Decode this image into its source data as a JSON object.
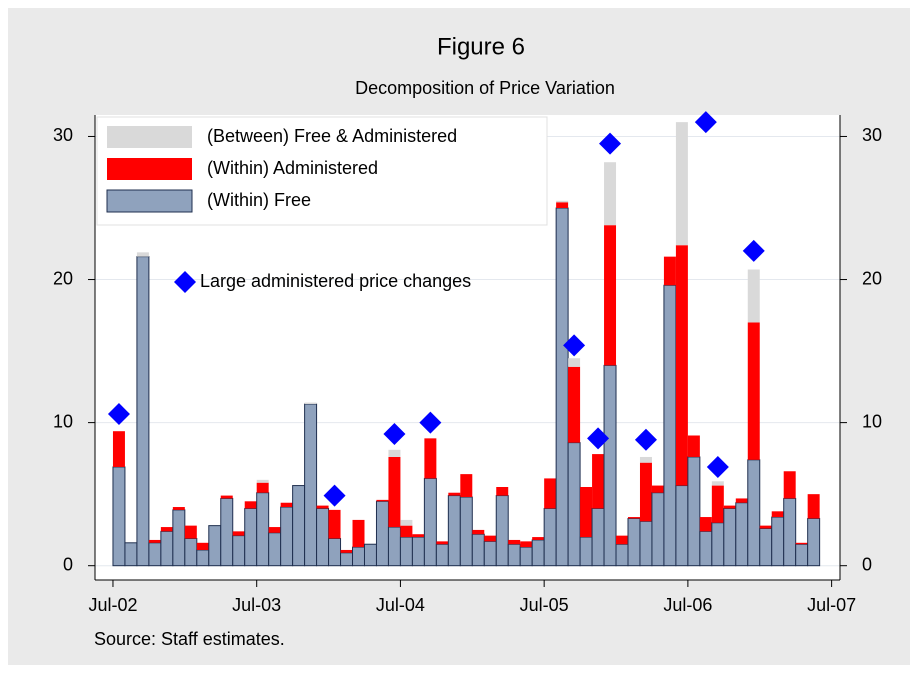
{
  "chart_data": {
    "type": "bar",
    "stacked": true,
    "title": "Figure 6",
    "subtitle": "Decomposition of Price Variation",
    "note": "Source: Staff estimates.",
    "x": [
      0,
      1,
      2,
      3,
      4,
      5,
      6,
      7,
      8,
      9,
      10,
      11,
      12,
      13,
      14,
      15,
      16,
      17,
      18,
      19,
      20,
      21,
      22,
      23,
      24,
      25,
      26,
      27,
      28,
      29,
      30,
      31,
      32,
      33,
      34,
      35,
      36,
      37,
      38,
      39,
      40,
      41,
      42,
      43,
      44,
      45,
      46,
      47,
      48,
      49,
      50,
      51,
      52,
      53,
      54,
      55,
      56,
      57,
      58
    ],
    "series": [
      {
        "name": "(Within) Free",
        "color": "#8fa2bd",
        "values": [
          6.9,
          1.6,
          21.6,
          1.6,
          2.4,
          3.9,
          1.9,
          1.1,
          2.8,
          4.7,
          2.1,
          4.0,
          5.1,
          2.3,
          4.1,
          5.6,
          11.3,
          4.0,
          1.9,
          0.9,
          1.3,
          1.5,
          4.5,
          2.7,
          2.0,
          2.0,
          6.1,
          1.5,
          4.9,
          4.8,
          2.2,
          1.7,
          4.9,
          1.5,
          1.3,
          1.8,
          4.0,
          25.0,
          8.6,
          2.0,
          4.0,
          14.0,
          1.5,
          3.3,
          3.1,
          5.1,
          19.6,
          5.6,
          7.6,
          2.4,
          3.0,
          4.0,
          4.4,
          7.4,
          2.6,
          3.4,
          4.7,
          1.5,
          3.3
        ]
      },
      {
        "name": "(Within) Administered",
        "color": "#ff0000",
        "values": [
          2.5,
          0,
          0,
          0.2,
          0.3,
          0.2,
          0.9,
          0.5,
          0,
          0.2,
          0.3,
          0.5,
          0.7,
          0.4,
          0.3,
          0,
          0,
          0.2,
          2.0,
          0.2,
          1.9,
          0,
          0.1,
          4.9,
          0.8,
          0.2,
          2.8,
          0.2,
          0.2,
          1.6,
          0.3,
          0.4,
          0.6,
          0.3,
          0.4,
          0.2,
          2.1,
          0.4,
          5.3,
          3.5,
          3.8,
          9.8,
          0.6,
          0.1,
          4.1,
          0.5,
          2.0,
          16.8,
          1.5,
          1.0,
          2.6,
          0.2,
          0.3,
          9.6,
          0.2,
          0.4,
          1.9,
          0.1,
          1.7
        ]
      },
      {
        "name": "(Between) Free & Administered",
        "color": "#d9d9d9",
        "values": [
          0,
          0,
          0.3,
          0,
          0,
          0,
          0,
          0,
          0,
          0,
          0,
          0,
          0.2,
          0,
          0,
          0,
          0.1,
          0,
          0,
          0,
          0,
          0,
          0,
          0.5,
          0.4,
          0,
          0,
          0,
          0,
          0,
          0,
          0,
          0,
          0,
          0,
          0,
          0,
          0.1,
          0.6,
          0,
          0,
          4.4,
          0,
          0,
          0.4,
          0,
          0,
          8.6,
          0,
          0,
          0.3,
          0,
          0,
          3.7,
          0,
          0,
          0,
          0,
          0
        ]
      }
    ],
    "markers": {
      "name": "Large administered price changes",
      "color": "#0000ff",
      "x": [
        0,
        18,
        23,
        26,
        38,
        40,
        41,
        44,
        49,
        50,
        53
      ],
      "values": [
        10.6,
        4.9,
        9.2,
        10.0,
        15.4,
        8.9,
        29.5,
        8.8,
        31.0,
        6.9,
        22.0
      ]
    },
    "xlim": [
      -1.5,
      60.7
    ],
    "xticks": [
      {
        "value": 0,
        "label": "Jul-02"
      },
      {
        "value": 12,
        "label": "Jul-03"
      },
      {
        "value": 24,
        "label": "Jul-04"
      },
      {
        "value": 36,
        "label": "Jul-05"
      },
      {
        "value": 48,
        "label": "Jul-06"
      },
      {
        "value": 60,
        "label": "Jul-07"
      }
    ],
    "ylim": [
      -1,
      31.5
    ],
    "yticks": [
      0,
      10,
      20,
      30
    ],
    "y2lim": [
      -1,
      31.5
    ],
    "y2ticks": [
      0,
      10,
      20,
      30
    ],
    "grid": true,
    "edge_color": "#1f2f4f"
  }
}
